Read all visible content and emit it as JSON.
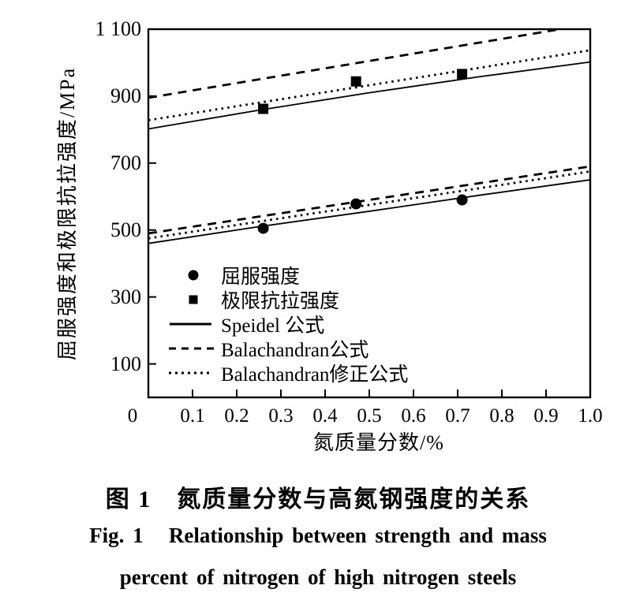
{
  "figure": {
    "caption_zh": "图 1　氮质量分数与高氮钢强度的关系",
    "caption_en_line1": "Fig. 1   Relationship between strength and mass",
    "caption_en_line2": "percent of nitrogen of high nitrogen steels"
  },
  "colors": {
    "ink": "#000000",
    "paper": "#ffffff"
  },
  "chart_data": {
    "type": "line",
    "title": "",
    "xlabel": "氮质量分数/%",
    "ylabel": "屈服强度和极限抗拉强度/MPa",
    "xlim": [
      0,
      1.0
    ],
    "ylim": [
      0,
      1100
    ],
    "grid": false,
    "legend_position": "inside lower-left",
    "x_ticks": [
      0,
      0.1,
      0.2,
      0.3,
      0.4,
      0.5,
      0.6,
      0.7,
      0.8,
      0.9,
      1.0
    ],
    "x_tick_labels": [
      "0",
      "0.1",
      "0.2",
      "0.3",
      "0.4",
      "0.5",
      "0.6",
      "0.7",
      "0.8",
      "0.9",
      "1.0"
    ],
    "y_ticks": [
      100,
      300,
      500,
      700,
      900,
      1100
    ],
    "y_tick_labels": [
      "100",
      "300",
      "500",
      "700",
      "900",
      "1 100"
    ],
    "scatter_series": [
      {
        "name": "屈服强度",
        "marker": "circle",
        "points": [
          [
            0.26,
            505
          ],
          [
            0.47,
            578
          ],
          [
            0.71,
            590
          ]
        ]
      },
      {
        "name": "极限抗拉强度",
        "marker": "square",
        "points": [
          [
            0.26,
            862
          ],
          [
            0.47,
            944
          ],
          [
            0.71,
            966
          ]
        ]
      }
    ],
    "line_series": [
      {
        "name": "Speidel 公式",
        "quantity": "屈服强度",
        "style": "solid",
        "points": [
          [
            0,
            460
          ],
          [
            0.25,
            510
          ],
          [
            0.5,
            556
          ],
          [
            0.75,
            604
          ],
          [
            1.0,
            650
          ]
        ]
      },
      {
        "name": "Speidel 公式",
        "quantity": "极限抗拉强度",
        "style": "solid",
        "points": [
          [
            0,
            802
          ],
          [
            0.25,
            858
          ],
          [
            0.5,
            910
          ],
          [
            0.75,
            958
          ],
          [
            1.0,
            1002
          ]
        ]
      },
      {
        "name": "Balachandran公式",
        "quantity": "屈服强度",
        "style": "dashed",
        "points": [
          [
            0,
            490
          ],
          [
            1.0,
            690
          ]
        ]
      },
      {
        "name": "Balachandran公式",
        "quantity": "极限抗拉强度",
        "style": "dashed",
        "points": [
          [
            0,
            895
          ],
          [
            1.0,
            1115
          ]
        ]
      },
      {
        "name": "Balachandran修正公式",
        "quantity": "屈服强度",
        "style": "dotted",
        "points": [
          [
            0,
            475
          ],
          [
            1.0,
            675
          ]
        ]
      },
      {
        "name": "Balachandran修正公式",
        "quantity": "极限抗拉强度",
        "style": "dotted",
        "points": [
          [
            0,
            828
          ],
          [
            1.0,
            1037
          ]
        ]
      }
    ],
    "legend": [
      {
        "marker": "circle",
        "label": "屈服强度"
      },
      {
        "marker": "square",
        "label": "极限抗拉强度"
      },
      {
        "marker": "solid-line",
        "label": "Speidel 公式"
      },
      {
        "marker": "dashed-line",
        "label": "Balachandran公式"
      },
      {
        "marker": "dotted-line",
        "label": "Balachandran修正公式"
      }
    ]
  }
}
